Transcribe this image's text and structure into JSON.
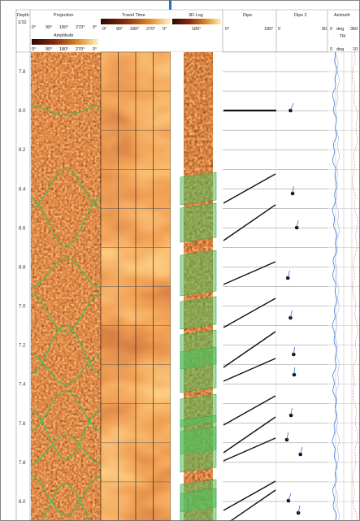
{
  "header": {
    "depth_title": "Depth",
    "depth_unit": "1/32",
    "projection_title": "Projection",
    "projection_ticks": [
      "0°",
      "90°",
      "180°",
      "270°",
      "0°"
    ],
    "amplitude_label": "Amplitude",
    "amplitude_ticks": [
      "0°",
      "90°",
      "180°",
      "270°",
      "0°"
    ],
    "travel_time_title": "Travel Time",
    "travel_time_ticks": [
      "0°",
      "90°",
      "180°",
      "270°",
      "0°"
    ],
    "log3d_title": "3D Log",
    "log3d_tick": "180°",
    "dips_title": "Dips",
    "dips_ticks": [
      "0°",
      "180°"
    ],
    "dips2_title": "Dips 2",
    "dips2_ticks": [
      "0",
      "90"
    ],
    "azimuth_title": "Azimuth",
    "azimuth_ticks": [
      "0",
      "deg",
      "360"
    ],
    "tilt_label": "Tilt",
    "tilt_ticks": [
      "0",
      "deg",
      "10"
    ]
  },
  "colors": {
    "image_dark": "#2a0a05",
    "image_mid": "#a0300c",
    "image_bright": "#f0a040",
    "sine_curve": "#3fbf5a",
    "grid": "#111111",
    "blue_curve": "#3a6fd0",
    "red_curve": "#e87a7a",
    "accent_marker": "#1e73c9"
  },
  "chart_data": {
    "type": "line",
    "depth_labels": [
      "7.8",
      "8.0",
      "8.2",
      "8.4",
      "8.6",
      "8.8",
      "7.0",
      "7.2",
      "7.4",
      "7.6",
      "7.8",
      "8.0"
    ],
    "dip_lines": [
      {
        "depth": 8.0,
        "dip": 80
      },
      {
        "depth": 8.48,
        "dip": 8
      },
      {
        "depth": 8.6,
        "dip": 15
      },
      {
        "depth": 8.9,
        "dip": 10
      },
      {
        "depth": 7.0,
        "dip": 8
      },
      {
        "depth": 7.18,
        "dip": 8
      },
      {
        "depth": 7.3,
        "dip": 8
      },
      {
        "depth": 7.55,
        "dip": 7
      },
      {
        "depth": 7.72,
        "dip": 5
      },
      {
        "depth": 7.85,
        "dip": 5
      },
      {
        "depth": 8.02,
        "dip": 8
      },
      {
        "depth": 8.08,
        "dip": 5
      }
    ],
    "tadpoles": [
      {
        "depth": 8.0,
        "dip": 24,
        "azimuth": 90
      },
      {
        "depth": 8.48,
        "dip": 28,
        "azimuth": 20
      },
      {
        "depth": 8.66,
        "dip": 36,
        "azimuth": 30
      },
      {
        "depth": 8.97,
        "dip": 19,
        "azimuth": 40
      },
      {
        "depth": 7.06,
        "dip": 24,
        "azimuth": 30
      },
      {
        "depth": 7.25,
        "dip": 30,
        "azimuth": 20
      },
      {
        "depth": 7.3,
        "dip": 31,
        "azimuth": 10
      },
      {
        "depth": 7.6,
        "dip": 25,
        "azimuth": 20
      },
      {
        "depth": 7.8,
        "dip": 17,
        "azimuth": 30
      },
      {
        "depth": 7.87,
        "dip": 43,
        "azimuth": 40
      },
      {
        "depth": 8.15,
        "dip": 20,
        "azimuth": 60
      },
      {
        "depth": 8.28,
        "dip": 39,
        "azimuth": 30
      }
    ]
  }
}
